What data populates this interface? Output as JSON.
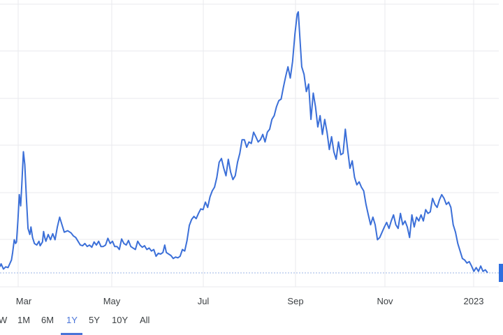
{
  "chart_data": {
    "type": "line",
    "title": "",
    "xlabel": "",
    "ylabel": "",
    "x_tick_labels": [
      "Mar",
      "May",
      "Jul",
      "Sep",
      "Nov",
      "2023"
    ],
    "grid": true,
    "series": [
      {
        "color": "#3b6fd8",
        "points": [
          [
            0,
            9
          ],
          [
            0.5,
            13
          ],
          [
            1.5,
            6
          ],
          [
            2.5,
            9
          ],
          [
            3.5,
            8
          ],
          [
            5,
            18
          ],
          [
            5.5,
            28
          ],
          [
            6.2,
            45
          ],
          [
            6.8,
            40
          ],
          [
            7.2,
            42
          ],
          [
            7.8,
            70
          ],
          [
            8.4,
            105
          ],
          [
            9,
            90
          ],
          [
            9.5,
            118
          ],
          [
            10.2,
            162
          ],
          [
            10.8,
            145
          ],
          [
            11.5,
            100
          ],
          [
            12.2,
            60
          ],
          [
            13,
            52
          ],
          [
            13.5,
            62
          ],
          [
            14.2,
            48
          ],
          [
            15,
            40
          ],
          [
            16,
            38
          ],
          [
            17,
            43
          ],
          [
            17.5,
            37
          ],
          [
            18.5,
            42
          ],
          [
            19,
            56
          ],
          [
            19.5,
            48
          ],
          [
            20,
            43
          ],
          [
            21,
            52
          ],
          [
            22,
            45
          ],
          [
            23,
            53
          ],
          [
            24,
            45
          ],
          [
            25,
            62
          ],
          [
            26,
            75
          ],
          [
            27,
            65
          ],
          [
            28,
            55
          ],
          [
            29.5,
            57
          ],
          [
            31,
            54
          ],
          [
            32,
            50
          ],
          [
            33,
            48
          ],
          [
            34,
            43
          ],
          [
            35,
            38
          ],
          [
            36,
            37
          ],
          [
            37,
            40
          ],
          [
            38,
            36
          ],
          [
            39,
            38
          ],
          [
            40,
            35
          ],
          [
            41,
            42
          ],
          [
            42,
            38
          ],
          [
            43,
            43
          ],
          [
            44,
            36
          ],
          [
            45,
            36
          ],
          [
            46,
            38
          ],
          [
            47,
            47
          ],
          [
            48,
            40
          ],
          [
            49,
            43
          ],
          [
            50,
            36
          ],
          [
            51,
            36
          ],
          [
            52,
            32
          ],
          [
            53,
            46
          ],
          [
            54,
            40
          ],
          [
            55,
            38
          ],
          [
            56,
            44
          ],
          [
            57,
            36
          ],
          [
            58,
            34
          ],
          [
            59,
            32
          ],
          [
            60,
            43
          ],
          [
            61,
            38
          ],
          [
            62,
            35
          ],
          [
            63,
            37
          ],
          [
            64,
            32
          ],
          [
            65,
            34
          ],
          [
            66,
            30
          ],
          [
            67,
            32
          ],
          [
            68,
            23
          ],
          [
            69,
            27
          ],
          [
            70,
            26
          ],
          [
            71,
            28
          ],
          [
            71.8,
            38
          ],
          [
            72.5,
            28
          ],
          [
            73.5,
            26
          ],
          [
            74.5,
            24
          ],
          [
            75.5,
            20
          ],
          [
            76.5,
            22
          ],
          [
            77.5,
            21
          ],
          [
            78.5,
            23
          ],
          [
            79.5,
            32
          ],
          [
            80.5,
            30
          ],
          [
            81.5,
            44
          ],
          [
            82.5,
            64
          ],
          [
            83.5,
            72
          ],
          [
            84.5,
            76
          ],
          [
            85.5,
            73
          ],
          [
            86.5,
            80
          ],
          [
            87.5,
            86
          ],
          [
            88.5,
            85
          ],
          [
            89.5,
            95
          ],
          [
            90.5,
            88
          ],
          [
            91.5,
            102
          ],
          [
            92.5,
            110
          ],
          [
            93.5,
            115
          ],
          [
            94.5,
            128
          ],
          [
            95.5,
            148
          ],
          [
            96.5,
            153
          ],
          [
            97.5,
            140
          ],
          [
            98.5,
            130
          ],
          [
            99.5,
            152
          ],
          [
            100.5,
            135
          ],
          [
            101.5,
            125
          ],
          [
            102.5,
            130
          ],
          [
            103.5,
            148
          ],
          [
            104.5,
            160
          ],
          [
            105.5,
            178
          ],
          [
            106.5,
            178
          ],
          [
            107.5,
            168
          ],
          [
            108.5,
            175
          ],
          [
            109.5,
            173
          ],
          [
            110.5,
            188
          ],
          [
            111.5,
            182
          ],
          [
            112.5,
            175
          ],
          [
            113.5,
            178
          ],
          [
            114.5,
            185
          ],
          [
            115.5,
            175
          ],
          [
            116.5,
            188
          ],
          [
            117.5,
            192
          ],
          [
            118.5,
            205
          ],
          [
            119.5,
            210
          ],
          [
            120.5,
            222
          ],
          [
            121.5,
            230
          ],
          [
            122.5,
            232
          ],
          [
            123.5,
            248
          ],
          [
            124.5,
            262
          ],
          [
            125.5,
            275
          ],
          [
            126.5,
            260
          ],
          [
            127.5,
            282
          ],
          [
            128.5,
            318
          ],
          [
            129.5,
            345
          ],
          [
            130,
            348
          ],
          [
            130.5,
            322
          ],
          [
            131.5,
            275
          ],
          [
            132.5,
            265
          ],
          [
            133.5,
            242
          ],
          [
            134.5,
            252
          ],
          [
            135.5,
            205
          ],
          [
            136.5,
            240
          ],
          [
            137.5,
            222
          ],
          [
            138.5,
            195
          ],
          [
            139.5,
            210
          ],
          [
            140.5,
            185
          ],
          [
            141.5,
            205
          ],
          [
            142.5,
            188
          ],
          [
            143.5,
            165
          ],
          [
            144.5,
            182
          ],
          [
            145.5,
            162
          ],
          [
            146.5,
            152
          ],
          [
            147.5,
            175
          ],
          [
            148.5,
            158
          ],
          [
            149.5,
            160
          ],
          [
            150.5,
            192
          ],
          [
            151.5,
            165
          ],
          [
            152.5,
            140
          ],
          [
            153.5,
            150
          ],
          [
            154.5,
            128
          ],
          [
            155.5,
            118
          ],
          [
            156.5,
            122
          ],
          [
            157.5,
            115
          ],
          [
            158.5,
            110
          ],
          [
            159.5,
            92
          ],
          [
            160.5,
            78
          ],
          [
            161.5,
            65
          ],
          [
            162.5,
            75
          ],
          [
            163.5,
            65
          ],
          [
            164.5,
            45
          ],
          [
            165.5,
            48
          ],
          [
            166.5,
            55
          ],
          [
            167.5,
            62
          ],
          [
            168.5,
            68
          ],
          [
            169.5,
            60
          ],
          [
            170.5,
            70
          ],
          [
            171.5,
            78
          ],
          [
            172.5,
            65
          ],
          [
            173.5,
            60
          ],
          [
            174.5,
            80
          ],
          [
            175.5,
            65
          ],
          [
            176.5,
            70
          ],
          [
            177.5,
            62
          ],
          [
            178.5,
            48
          ],
          [
            179.5,
            78
          ],
          [
            180.5,
            62
          ],
          [
            181.5,
            75
          ],
          [
            182.5,
            70
          ],
          [
            183.5,
            78
          ],
          [
            184.5,
            70
          ],
          [
            185.5,
            85
          ],
          [
            186.5,
            80
          ],
          [
            187.5,
            82
          ],
          [
            188.5,
            100
          ],
          [
            189.5,
            92
          ],
          [
            190.5,
            88
          ],
          [
            191.5,
            98
          ],
          [
            192.5,
            105
          ],
          [
            193.5,
            100
          ],
          [
            194.5,
            92
          ],
          [
            195.5,
            95
          ],
          [
            196.5,
            88
          ],
          [
            197.5,
            65
          ],
          [
            198.5,
            55
          ],
          [
            199.5,
            40
          ],
          [
            200.5,
            30
          ],
          [
            201.5,
            20
          ],
          [
            202.5,
            18
          ],
          [
            203.5,
            14
          ],
          [
            204.5,
            16
          ],
          [
            205.5,
            10
          ],
          [
            206.5,
            3
          ],
          [
            207.5,
            8
          ],
          [
            208.5,
            3
          ],
          [
            209.5,
            10
          ],
          [
            210.5,
            3
          ],
          [
            211.5,
            5
          ],
          [
            212.5,
            1
          ]
        ]
      }
    ]
  },
  "range_selector": {
    "buttons": [
      "W",
      "1M",
      "6M",
      "1Y",
      "5Y",
      "10Y",
      "All"
    ],
    "active": "1Y"
  }
}
